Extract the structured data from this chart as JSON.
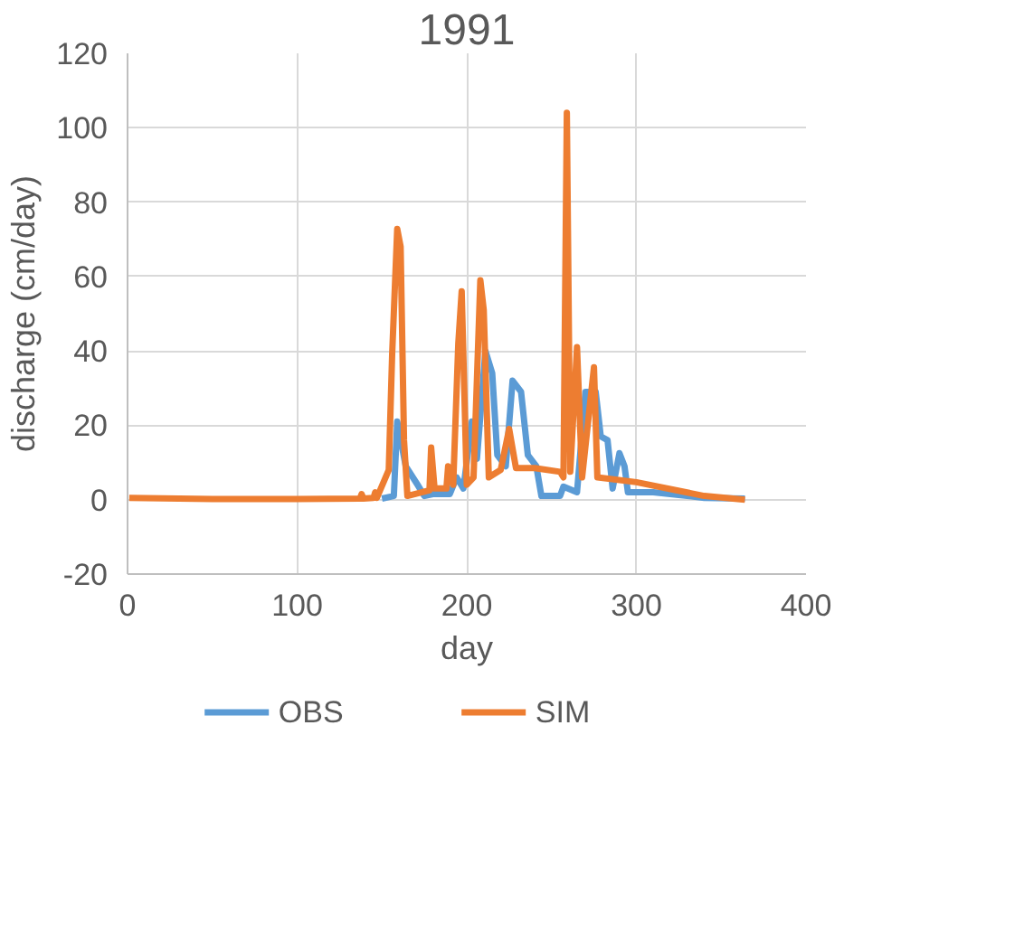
{
  "chart_data": {
    "type": "line",
    "title": "1991",
    "xlabel": "day",
    "ylabel": "discharge (cm/day)",
    "xlim": [
      0,
      400
    ],
    "xticks": [
      0,
      100,
      200,
      300,
      400
    ],
    "ylim": [
      -20,
      120
    ],
    "yticks": [
      -20,
      0,
      20,
      40,
      60,
      80,
      100,
      120
    ],
    "grid": true,
    "legend": "bottom",
    "line_style": "solid",
    "marker": "none",
    "series": [
      {
        "name": "OBS",
        "color": "#5b9bd5",
        "x": [
          150,
          157,
          159,
          164,
          171,
          175,
          180,
          190,
          194,
          198,
          203,
          206,
          211,
          215,
          218,
          223,
          227,
          232,
          236,
          241,
          244,
          255,
          257,
          265,
          270,
          276,
          279,
          283,
          286,
          290,
          293,
          295,
          310,
          340,
          364
        ],
        "values": [
          0.3,
          1,
          21,
          9,
          4,
          1,
          1.5,
          1.5,
          6,
          3,
          21,
          11,
          40,
          34,
          12,
          9,
          32,
          29,
          12,
          9,
          1,
          1,
          3.5,
          2,
          29,
          29,
          17,
          16,
          3,
          12.5,
          9,
          2,
          2,
          0.5,
          0.3
        ]
      },
      {
        "name": "SIM",
        "color": "#ed7d31",
        "x": [
          1,
          50,
          100,
          137,
          138,
          139,
          145,
          146,
          147,
          154,
          156,
          159,
          161,
          163,
          165,
          178,
          179,
          181,
          188,
          189,
          192,
          195,
          197,
          200,
          204,
          208,
          210,
          213,
          220,
          225,
          229,
          240,
          255,
          257,
          259,
          261,
          265,
          268,
          275,
          277,
          300,
          340,
          364
        ],
        "values": [
          0.5,
          0.2,
          0.2,
          0.3,
          1.5,
          0.3,
          0.5,
          2,
          0.5,
          8,
          39,
          72.8,
          68,
          16,
          1,
          2.5,
          14,
          3,
          3,
          9,
          4,
          42,
          56,
          4,
          6,
          59,
          51,
          6,
          8,
          19,
          8.5,
          8.5,
          7.5,
          6,
          104,
          7.5,
          41,
          6,
          35.6,
          6,
          4.7,
          1,
          0
        ]
      }
    ]
  }
}
